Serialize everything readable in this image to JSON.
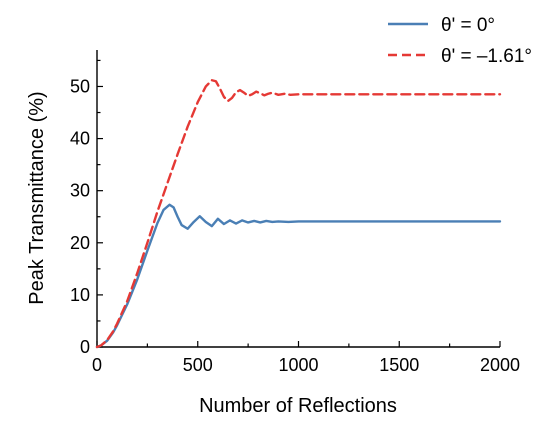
{
  "chart_data": {
    "type": "line",
    "title": "",
    "xlabel": "Number of Reflections",
    "ylabel": "Peak Transmittance (%)",
    "xlim": [
      0,
      2000
    ],
    "ylim": [
      0,
      57
    ],
    "x_ticks": [
      0,
      500,
      1000,
      1500,
      2000
    ],
    "x_tick_labels": [
      "0",
      "500",
      "1000",
      "1500",
      "2000"
    ],
    "y_ticks": [
      0,
      10,
      20,
      30,
      40,
      50
    ],
    "y_tick_labels": [
      "0",
      "10",
      "20",
      "30",
      "40",
      "50"
    ],
    "grid": false,
    "legend_position": "top-right",
    "series": [
      {
        "name": "θ' = 0°",
        "color": "#4a7fb5",
        "style": "solid",
        "x": [
          0,
          20,
          50,
          80,
          100,
          150,
          200,
          250,
          300,
          330,
          360,
          380,
          400,
          420,
          450,
          480,
          510,
          540,
          570,
          600,
          630,
          660,
          690,
          720,
          750,
          780,
          810,
          840,
          870,
          900,
          950,
          1000,
          1100,
          1200,
          1300,
          1400,
          1500,
          1600,
          1700,
          1800,
          1900,
          2000
        ],
        "y": [
          0,
          0.3,
          1.2,
          2.8,
          4.2,
          8.2,
          13.0,
          18.5,
          23.8,
          26.3,
          27.3,
          26.8,
          25.0,
          23.4,
          22.7,
          24.0,
          25.1,
          24.0,
          23.2,
          24.6,
          23.6,
          24.3,
          23.7,
          24.3,
          23.9,
          24.2,
          23.9,
          24.2,
          24.0,
          24.1,
          24.0,
          24.1,
          24.1,
          24.1,
          24.1,
          24.1,
          24.1,
          24.1,
          24.1,
          24.1,
          24.1,
          24.1
        ]
      },
      {
        "name": "θ' = –1.61°",
        "color": "#e53935",
        "style": "dashed",
        "x": [
          0,
          20,
          50,
          80,
          100,
          150,
          200,
          250,
          300,
          350,
          400,
          450,
          500,
          540,
          570,
          590,
          610,
          630,
          650,
          670,
          690,
          710,
          730,
          750,
          770,
          790,
          810,
          830,
          850,
          870,
          900,
          930,
          960,
          1000,
          1100,
          1200,
          1300,
          1400,
          1500,
          1600,
          1700,
          1800,
          1900,
          2000
        ],
        "y": [
          0,
          0.3,
          1.3,
          3.0,
          4.5,
          8.8,
          14.2,
          20.0,
          26.0,
          31.5,
          37.0,
          42.3,
          47.0,
          50.0,
          51.2,
          51.0,
          49.6,
          48.0,
          47.2,
          47.8,
          48.9,
          49.3,
          48.8,
          48.2,
          48.5,
          49.0,
          48.7,
          48.3,
          48.6,
          48.8,
          48.4,
          48.6,
          48.4,
          48.5,
          48.5,
          48.5,
          48.5,
          48.5,
          48.5,
          48.5,
          48.5,
          48.5,
          48.5,
          48.5
        ]
      }
    ]
  }
}
